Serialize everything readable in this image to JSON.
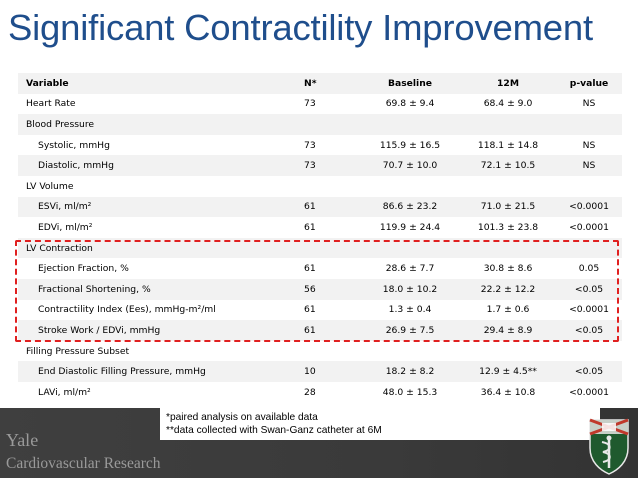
{
  "title": "Significant Contractility Improvement",
  "table": {
    "headers": {
      "variable": "Variable",
      "n": "N*",
      "baseline": "Baseline",
      "m12": "12M",
      "pvalue": "p-value"
    },
    "rows": [
      {
        "variable": "Heart Rate",
        "n": "73",
        "baseline": "69.8 ± 9.4",
        "m12": "68.4 ± 9.0",
        "pvalue": "NS"
      },
      {
        "variable": "Blood Pressure",
        "n": "",
        "baseline": "",
        "m12": "",
        "pvalue": ""
      },
      {
        "variable": "Systolic, mmHg",
        "n": "73",
        "baseline": "115.9 ± 16.5",
        "m12": "118.1 ± 14.8",
        "pvalue": "NS"
      },
      {
        "variable": "Diastolic, mmHg",
        "n": "73",
        "baseline": "70.7 ± 10.0",
        "m12": "72.1 ± 10.5",
        "pvalue": "NS"
      },
      {
        "variable": "LV Volume",
        "n": "",
        "baseline": "",
        "m12": "",
        "pvalue": ""
      },
      {
        "variable": "ESVi, ml/m²",
        "n": "61",
        "baseline": "86.6 ± 23.2",
        "m12": "71.0 ± 21.5",
        "pvalue": "<0.0001"
      },
      {
        "variable": "EDVi, ml/m²",
        "n": "61",
        "baseline": "119.9 ± 24.4",
        "m12": "101.3 ± 23.8",
        "pvalue": "<0.0001"
      },
      {
        "variable": "LV Contraction",
        "n": "",
        "baseline": "",
        "m12": "",
        "pvalue": ""
      },
      {
        "variable": "Ejection Fraction, %",
        "n": "61",
        "baseline": "28.6  ± 7.7",
        "m12": "30.8  ± 8.6",
        "pvalue": "0.05"
      },
      {
        "variable": "Fractional Shortening, %",
        "n": "56",
        "baseline": "18.0  ± 10.2",
        "m12": "22.2  ± 12.2",
        "pvalue": "<0.05"
      },
      {
        "variable": "Contractility Index (Ees), mmHg-m²/ml",
        "n": "61",
        "baseline": "1.3 ± 0.4",
        "m12": "1.7 ± 0.6",
        "pvalue": "<0.0001"
      },
      {
        "variable": "Stroke Work / EDVi, mmHg",
        "n": "61",
        "baseline": "26.9 ± 7.5",
        "m12": "29.4 ± 8.9",
        "pvalue": "<0.05"
      },
      {
        "variable": "Filling Pressure Subset",
        "n": "",
        "baseline": "",
        "m12": "",
        "pvalue": ""
      },
      {
        "variable": "End Diastolic Filling Pressure, mmHg",
        "n": "10",
        "baseline": "18.2 ± 8.2",
        "m12": "12.9 ± 4.5**",
        "pvalue": "<0.05"
      },
      {
        "variable": "LAVi, ml/m²",
        "n": "28",
        "baseline": "48.0 ± 15.3",
        "m12": "36.4 ± 10.8",
        "pvalue": "<0.0001"
      }
    ]
  },
  "footnotes": {
    "line1": "*paired analysis on available data",
    "line2": "**data collected with Swan-Ganz catheter at 6M"
  },
  "footer": {
    "brand": "Yale",
    "subtitle": "Cardiovascular Research"
  },
  "colors": {
    "title": "#1f4e8c",
    "highlight": "#e02020",
    "row_shade": "#f2f2f2",
    "footer_bg": "#3a3a3a"
  }
}
